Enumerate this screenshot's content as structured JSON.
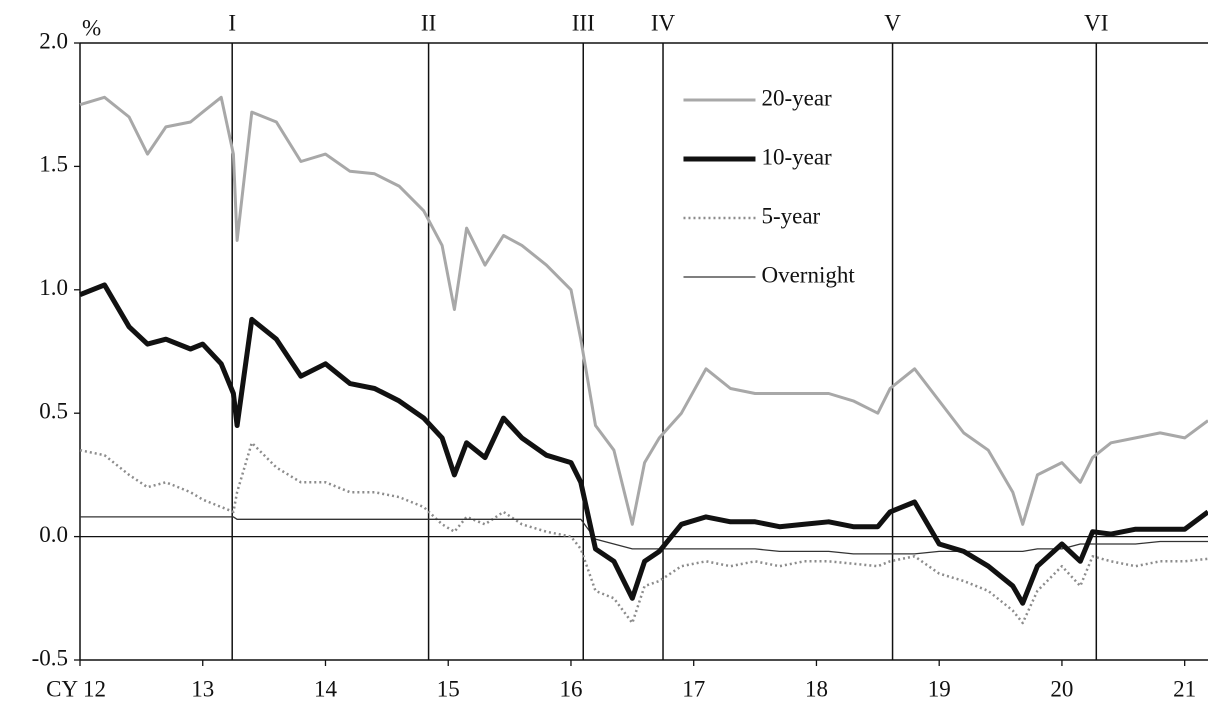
{
  "chart_data": {
    "type": "line",
    "y_unit": "%",
    "x": [
      12.0,
      12.2,
      12.4,
      12.55,
      12.7,
      12.9,
      13.0,
      13.15,
      13.25,
      13.28,
      13.4,
      13.6,
      13.8,
      14.0,
      14.2,
      14.4,
      14.6,
      14.8,
      14.95,
      15.05,
      15.15,
      15.3,
      15.45,
      15.6,
      15.8,
      16.0,
      16.08,
      16.2,
      16.35,
      16.5,
      16.6,
      16.72,
      16.9,
      17.1,
      17.3,
      17.5,
      17.7,
      17.9,
      18.1,
      18.3,
      18.5,
      18.6,
      18.8,
      19.0,
      19.2,
      19.4,
      19.6,
      19.68,
      19.8,
      20.0,
      20.15,
      20.25,
      20.4,
      20.6,
      20.8,
      21.0,
      21.19
    ],
    "series": [
      {
        "name": "20-year",
        "color": "#a8a8a8",
        "line_width": 3,
        "dashed": false,
        "values": [
          1.75,
          1.78,
          1.7,
          1.55,
          1.66,
          1.68,
          1.72,
          1.78,
          1.55,
          1.2,
          1.72,
          1.68,
          1.52,
          1.55,
          1.48,
          1.47,
          1.42,
          1.32,
          1.18,
          0.92,
          1.25,
          1.1,
          1.22,
          1.18,
          1.1,
          1.0,
          0.8,
          0.45,
          0.35,
          0.05,
          0.3,
          0.4,
          0.5,
          0.68,
          0.6,
          0.58,
          0.58,
          0.58,
          0.58,
          0.55,
          0.5,
          0.6,
          0.68,
          0.55,
          0.42,
          0.35,
          0.18,
          0.05,
          0.25,
          0.3,
          0.22,
          0.32,
          0.38,
          0.4,
          0.42,
          0.4,
          0.47
        ]
      },
      {
        "name": "10-year",
        "color": "#111111",
        "line_width": 5,
        "dashed": false,
        "values": [
          0.98,
          1.02,
          0.85,
          0.78,
          0.8,
          0.76,
          0.78,
          0.7,
          0.58,
          0.45,
          0.88,
          0.8,
          0.65,
          0.7,
          0.62,
          0.6,
          0.55,
          0.48,
          0.4,
          0.25,
          0.38,
          0.32,
          0.48,
          0.4,
          0.33,
          0.3,
          0.22,
          -0.05,
          -0.1,
          -0.25,
          -0.1,
          -0.06,
          0.05,
          0.08,
          0.06,
          0.06,
          0.04,
          0.05,
          0.06,
          0.04,
          0.04,
          0.1,
          0.14,
          -0.03,
          -0.06,
          -0.12,
          -0.2,
          -0.27,
          -0.12,
          -0.03,
          -0.1,
          0.02,
          0.01,
          0.03,
          0.03,
          0.03,
          0.1
        ]
      },
      {
        "name": "5-year",
        "color": "#8c8c8c",
        "line_width": 2.5,
        "dashed": true,
        "values": [
          0.35,
          0.33,
          0.25,
          0.2,
          0.22,
          0.18,
          0.15,
          0.12,
          0.1,
          0.18,
          0.38,
          0.28,
          0.22,
          0.22,
          0.18,
          0.18,
          0.16,
          0.12,
          0.05,
          0.02,
          0.08,
          0.05,
          0.1,
          0.05,
          0.02,
          0.0,
          -0.05,
          -0.22,
          -0.25,
          -0.35,
          -0.2,
          -0.18,
          -0.12,
          -0.1,
          -0.12,
          -0.1,
          -0.12,
          -0.1,
          -0.1,
          -0.11,
          -0.12,
          -0.1,
          -0.08,
          -0.15,
          -0.18,
          -0.22,
          -0.3,
          -0.35,
          -0.22,
          -0.12,
          -0.2,
          -0.08,
          -0.1,
          -0.12,
          -0.1,
          -0.1,
          -0.09
        ]
      },
      {
        "name": "Overnight",
        "color": "#333333",
        "line_width": 1.3,
        "dashed": false,
        "values": [
          0.08,
          0.08,
          0.08,
          0.08,
          0.08,
          0.08,
          0.08,
          0.08,
          0.08,
          0.07,
          0.07,
          0.07,
          0.07,
          0.07,
          0.07,
          0.07,
          0.07,
          0.07,
          0.07,
          0.07,
          0.07,
          0.07,
          0.07,
          0.07,
          0.07,
          0.07,
          0.07,
          -0.01,
          -0.03,
          -0.05,
          -0.05,
          -0.05,
          -0.05,
          -0.05,
          -0.05,
          -0.05,
          -0.06,
          -0.06,
          -0.06,
          -0.07,
          -0.07,
          -0.07,
          -0.07,
          -0.06,
          -0.06,
          -0.06,
          -0.06,
          -0.06,
          -0.05,
          -0.05,
          -0.03,
          -0.03,
          -0.03,
          -0.03,
          -0.02,
          -0.02,
          -0.02
        ]
      }
    ],
    "events": [
      {
        "label": "I",
        "x": 13.24
      },
      {
        "label": "II",
        "x": 14.84
      },
      {
        "label": "III",
        "x": 16.1
      },
      {
        "label": "IV",
        "x": 16.75
      },
      {
        "label": "V",
        "x": 18.62
      },
      {
        "label": "VI",
        "x": 20.28
      }
    ],
    "xlim": [
      12,
      21.19
    ],
    "xticks": [
      {
        "value": 12,
        "label": "CY 12"
      },
      13,
      14,
      15,
      16,
      17,
      18,
      19,
      20,
      21
    ],
    "ylim": [
      -0.5,
      2.0
    ],
    "yticks": [
      {
        "value": -0.5,
        "label": "-0.5"
      },
      {
        "value": 0,
        "label": "0.0"
      },
      {
        "value": 0.5,
        "label": "0.5"
      },
      {
        "value": 1,
        "label": "1.0"
      },
      {
        "value": 1.5,
        "label": "1.5"
      },
      {
        "value": 2,
        "label": "2.0"
      }
    ],
    "legend": "upper center"
  }
}
